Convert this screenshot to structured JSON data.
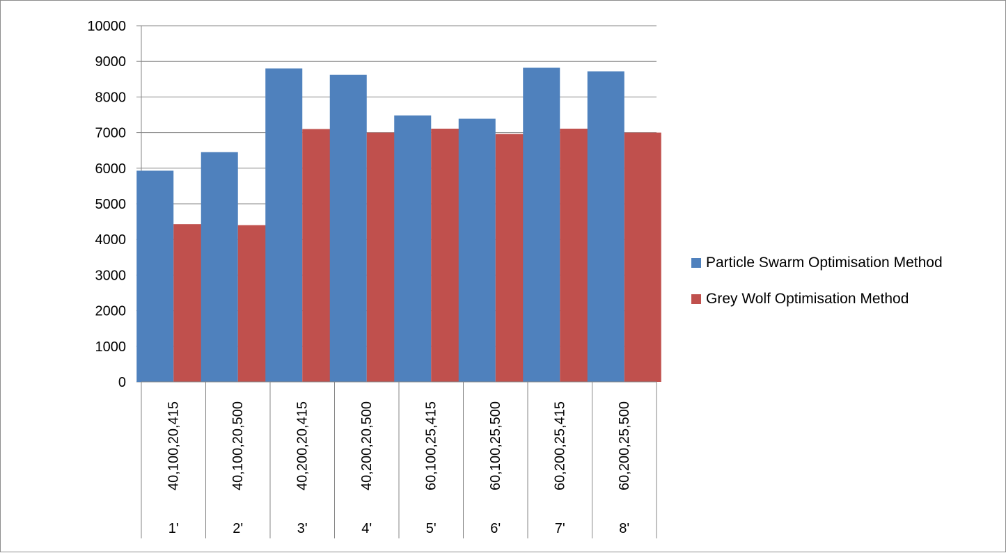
{
  "chart_data": {
    "type": "bar",
    "categories": [
      "40,100,20,415",
      "40,100,20,500",
      "40,200,20,415",
      "40,200,20,500",
      "60,100,25,415",
      "60,100,25,500",
      "60,200,25,415",
      "60,200,25,500"
    ],
    "category_groups": [
      "1'",
      "2'",
      "3'",
      "4'",
      "5'",
      "6'",
      "7'",
      "8'"
    ],
    "series": [
      {
        "name": "Particle Swarm Optimisation Method",
        "color": "#4f81bd",
        "values": [
          5930,
          6450,
          8800,
          8620,
          7480,
          7390,
          8820,
          8720
        ]
      },
      {
        "name": "Grey Wolf  Optimisation Method",
        "color": "#c0504d",
        "values": [
          4430,
          4400,
          7100,
          7000,
          7110,
          6960,
          7110,
          7000
        ]
      }
    ],
    "ylim": [
      0,
      10000
    ],
    "yticks": [
      "0",
      "1000",
      "2000",
      "3000",
      "4000",
      "5000",
      "6000",
      "7000",
      "8000",
      "9000",
      "10000"
    ],
    "grid": true,
    "legend_position": "right"
  }
}
